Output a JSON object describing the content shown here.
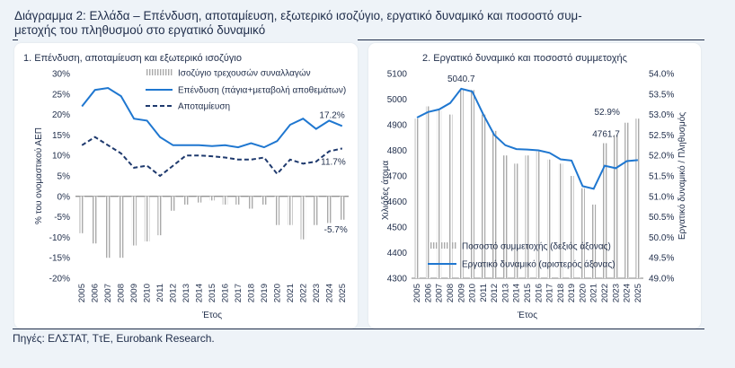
{
  "page": {
    "title": "Διάγραμμα 2: Ελλάδα – Επένδυση, αποταμίευση, εξωτερικό ισοζύγιο, εργατικό δυναμικό και ποσοστό συμ-μετοχής του πληθυσμού στο εργατικό δυναμικό",
    "title_line1": "Διάγραμμα 2: Ελλάδα – Επένδυση, αποταμίευση, εξωτερικό ισοζύγιο, εργατικό δυναμικό και ποσοστό συμ-",
    "title_line2": "μετοχής του πληθυσμού στο εργατικό δυναμικό",
    "source": "Πηγές: ΕΛΣΤΑΤ, ΤτΕ, Eurobank Research."
  },
  "colors": {
    "line_blue": "#1f77d0",
    "line_navy": "#1f3a6e",
    "bar_gray": "#aaaaaa",
    "text": "#1f2d4a"
  },
  "chart_data": [
    {
      "type": "bar",
      "title": "1. Επένδυση, αποταμίευση και εξωτερικό ισοζύγιο",
      "xlabel": "Έτος",
      "ylabel": "% του ονομαστικού ΑΕΠ",
      "ylim": [
        -20,
        30
      ],
      "yticks": [
        30,
        25,
        20,
        15,
        10,
        5,
        0,
        -5,
        -10,
        -15,
        -20
      ],
      "ytick_labels": [
        "30%",
        "25%",
        "20%",
        "15%",
        "10%",
        "5%",
        "0%",
        "-5%",
        "-10%",
        "-15%",
        "-20%"
      ],
      "x": [
        "2005",
        "2006",
        "2007",
        "2008",
        "2009",
        "2010",
        "2011",
        "2012",
        "2013",
        "2014",
        "2015",
        "2016",
        "2017",
        "2018",
        "2019",
        "2020",
        "2021",
        "2022",
        "2023",
        "2024",
        "2025"
      ],
      "series": [
        {
          "name": "Ισοζύγιο τρεχουσών συναλλαγών",
          "kind": "bar",
          "values": [
            -9.0,
            -11.5,
            -15.0,
            -15.0,
            -12.0,
            -11.0,
            -9.5,
            -3.5,
            -2.0,
            -1.5,
            -1.0,
            -2.0,
            -2.0,
            -3.0,
            -2.0,
            -7.0,
            -7.0,
            -10.5,
            -7.0,
            -6.5,
            -5.7
          ]
        },
        {
          "name": "Επένδυση (πάγια+μεταβολή αποθεμάτων)",
          "kind": "line",
          "values": [
            22.0,
            26.0,
            26.5,
            24.5,
            19.0,
            18.5,
            14.5,
            12.5,
            12.5,
            12.5,
            12.3,
            12.5,
            12.0,
            13.0,
            12.0,
            13.5,
            17.5,
            19.0,
            16.5,
            18.5,
            17.2
          ]
        },
        {
          "name": "Αποταμίευση",
          "kind": "line",
          "values": [
            12.5,
            14.5,
            12.5,
            10.5,
            7.0,
            7.5,
            5.0,
            7.5,
            10.0,
            10.0,
            9.8,
            9.5,
            9.0,
            9.0,
            9.5,
            5.5,
            9.0,
            8.0,
            8.5,
            11.0,
            11.7
          ]
        }
      ],
      "annotations": [
        "17.2%",
        "11.7%",
        "-5.7%"
      ],
      "legend_placement": "top-right"
    },
    {
      "type": "bar",
      "title": "2. Εργατικό δυναμικό και ποσοστό συμμετοχής",
      "xlabel": "Έτος",
      "ylabel": "Χιλιάδες άτομα",
      "y2label": "Εργατικό δυναμικό / Πληθυσμός",
      "ylim": [
        4300,
        5100
      ],
      "yticks": [
        5100,
        5000,
        4900,
        4800,
        4700,
        4600,
        4500,
        4400,
        4300
      ],
      "y2lim": [
        49.0,
        54.0
      ],
      "y2ticks": [
        54.0,
        53.5,
        53.0,
        52.5,
        52.0,
        51.5,
        51.0,
        50.5,
        50.0,
        49.5,
        49.0
      ],
      "y2tick_labels": [
        "54.0%",
        "53.5%",
        "53.0%",
        "52.5%",
        "52.0%",
        "51.5%",
        "51.0%",
        "50.5%",
        "50.0%",
        "49.5%",
        "49.0%"
      ],
      "x": [
        "2005",
        "2006",
        "2007",
        "2008",
        "2009",
        "2010",
        "2011",
        "2012",
        "2013",
        "2014",
        "2015",
        "2016",
        "2017",
        "2018",
        "2019",
        "2020",
        "2021",
        "2022",
        "2023",
        "2024",
        "2025"
      ],
      "series": [
        {
          "name": "Ποσοστό συμμετοχής (δεξιός άξονας)",
          "kind": "bar",
          "axis": "right",
          "values": [
            52.9,
            53.2,
            53.1,
            53.0,
            53.6,
            53.6,
            53.0,
            52.6,
            52.0,
            51.8,
            52.0,
            52.1,
            51.9,
            51.8,
            51.5,
            51.2,
            50.8,
            52.3,
            52.5,
            52.8,
            52.9
          ]
        },
        {
          "name": "Εργατικό δυναμικό (αριστερός άξονας)",
          "kind": "line",
          "axis": "left",
          "values": [
            4928,
            4950,
            4960,
            4985,
            5040.7,
            5030,
            4940,
            4860,
            4820,
            4805,
            4803,
            4800,
            4790,
            4765,
            4760,
            4660,
            4650,
            4740,
            4730,
            4758,
            4761.7
          ]
        }
      ],
      "annotations": [
        "5040.7",
        "52.9%",
        "4761.7"
      ],
      "legend_placement": "bottom-center"
    }
  ]
}
